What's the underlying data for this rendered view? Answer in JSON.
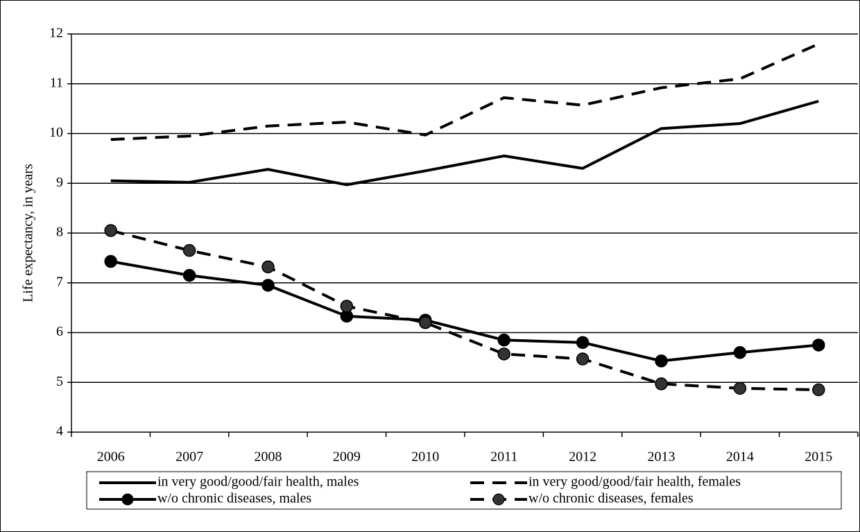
{
  "chart_data": {
    "type": "line",
    "y_label": "Life expectancy, in years",
    "categories": [
      "2006",
      "2007",
      "2008",
      "2009",
      "2010",
      "2011",
      "2012",
      "2013",
      "2014",
      "2015"
    ],
    "ylim": [
      4,
      12
    ],
    "yticks": [
      4,
      5,
      6,
      7,
      8,
      9,
      10,
      11,
      12
    ],
    "grid": true,
    "series": [
      {
        "name": "in very good/good/fair health, males",
        "color": "#000000",
        "dashed": false,
        "marker": false,
        "values": [
          9.05,
          9.02,
          9.28,
          8.97,
          9.25,
          9.55,
          9.3,
          10.1,
          10.2,
          10.65
        ]
      },
      {
        "name": "in very good/good/fair health, females",
        "color": "#000000",
        "dashed": true,
        "marker": false,
        "values": [
          9.88,
          9.95,
          10.15,
          10.23,
          9.97,
          10.72,
          10.57,
          10.92,
          11.1,
          11.8
        ]
      },
      {
        "name": "w/o chronic diseases, males",
        "color": "#000000",
        "dashed": false,
        "marker": true,
        "values": [
          7.43,
          7.15,
          6.95,
          6.33,
          6.25,
          5.85,
          5.8,
          5.43,
          5.6,
          5.75
        ]
      },
      {
        "name": "w/o chronic diseases, females",
        "color": "#000000",
        "dashed": true,
        "marker": true,
        "values": [
          8.05,
          7.65,
          7.32,
          6.53,
          6.2,
          5.57,
          5.47,
          4.97,
          4.88,
          4.85
        ]
      }
    ]
  }
}
